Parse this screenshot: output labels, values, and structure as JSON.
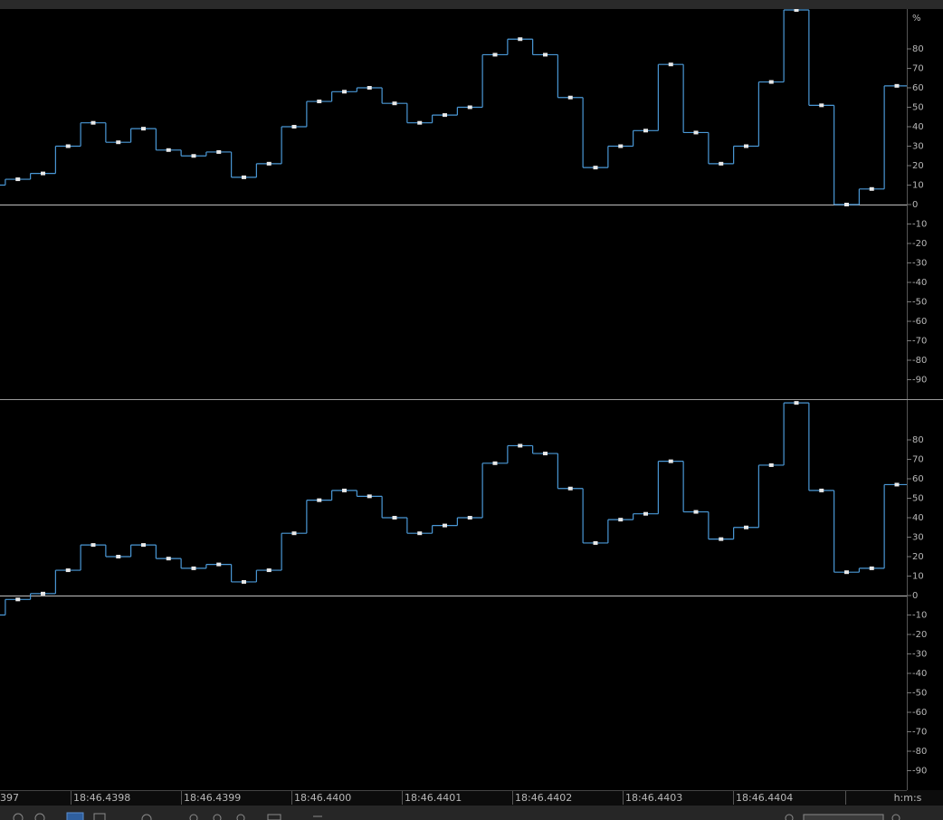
{
  "unit": "%",
  "ylim": [
    -100,
    100
  ],
  "yticks": [
    80,
    70,
    60,
    50,
    40,
    30,
    20,
    10,
    0,
    -10,
    -20,
    -30,
    -40,
    -50,
    -60,
    -70,
    -80,
    -90
  ],
  "channels": [
    {
      "values": [
        10,
        13,
        16,
        30,
        42,
        32,
        39,
        28,
        25,
        27,
        14,
        21,
        40,
        53,
        58,
        60,
        52,
        42,
        46,
        50,
        77,
        85,
        77,
        55,
        19,
        30,
        38,
        72,
        37,
        21,
        30,
        63,
        100,
        51,
        0,
        8,
        61
      ]
    },
    {
      "values": [
        -10,
        -2,
        1,
        13,
        26,
        20,
        26,
        19,
        14,
        16,
        7,
        13,
        32,
        49,
        54,
        51,
        40,
        32,
        36,
        40,
        68,
        77,
        73,
        55,
        27,
        39,
        42,
        69,
        43,
        29,
        35,
        67,
        99,
        54,
        12,
        14,
        57
      ]
    }
  ],
  "time_labels": [
    "397",
    "18:46.4398",
    "18:46.4399",
    "18:46.4400",
    "18:46.4401",
    "18:46.4402",
    "18:46.4403",
    "18:46.4404"
  ],
  "time_unit": "h:m:s"
}
